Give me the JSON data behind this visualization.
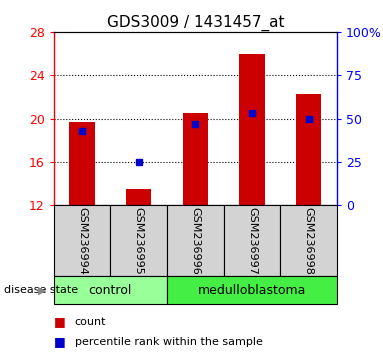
{
  "title": "GDS3009 / 1431457_at",
  "samples": [
    "GSM236994",
    "GSM236995",
    "GSM236996",
    "GSM236997",
    "GSM236998"
  ],
  "counts": [
    19.7,
    13.5,
    20.5,
    26.0,
    22.3
  ],
  "percentiles": [
    43.0,
    25.0,
    47.0,
    53.0,
    50.0
  ],
  "ymin": 12,
  "ymax": 28,
  "yticks": [
    12,
    16,
    20,
    24,
    28
  ],
  "right_yticks": [
    0,
    25,
    50,
    75,
    100
  ],
  "right_ytick_labels": [
    "0",
    "25",
    "50",
    "75",
    "100%"
  ],
  "bar_color": "#cc0000",
  "dot_color": "#0000cc",
  "groups": [
    {
      "label": "control",
      "span": [
        0,
        2
      ],
      "color": "#99ff99"
    },
    {
      "label": "medulloblastoma",
      "span": [
        2,
        5
      ],
      "color": "#44ee44"
    }
  ],
  "group_label": "disease state",
  "legend_count": "count",
  "legend_percentile": "percentile rank within the sample"
}
